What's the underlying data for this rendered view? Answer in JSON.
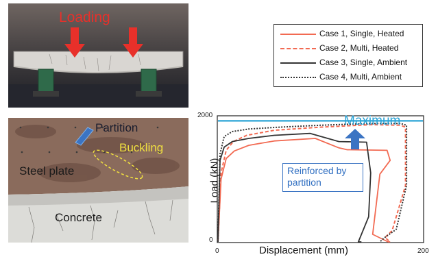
{
  "top_photo": {
    "loading_label": "Loading"
  },
  "bottom_photo": {
    "partition_label": "Partition",
    "buckling_label": "Buckling",
    "steel_label": "Steel plate",
    "concrete_label": "Concrete"
  },
  "colors": {
    "case_red": "#f26a52",
    "case_dark": "#333333",
    "maximum_line": "#2aa3d6",
    "callout": "#3b74c3",
    "loading_arrow": "#e8302a",
    "buckling_text": "#f0e040"
  },
  "chart_data": {
    "type": "line",
    "xlabel": "Displacement (mm)",
    "ylabel": "Load (kN)",
    "xlim": [
      0,
      200
    ],
    "ylim": [
      0,
      2000
    ],
    "x_ticks": [
      "0",
      "200"
    ],
    "y_ticks": [
      "0",
      "2000"
    ],
    "legend_position": "top-right",
    "series": [
      {
        "name": "Case 1, Single, Heated",
        "color": "#f26a52",
        "dash": "solid",
        "x": [
          0,
          3,
          8,
          16,
          30,
          55,
          95,
          118,
          126,
          165,
          168,
          158,
          151,
          166,
          168
        ],
        "y": [
          0,
          1000,
          1330,
          1450,
          1540,
          1610,
          1650,
          1500,
          1470,
          1460,
          1300,
          1080,
          120,
          0,
          0
        ]
      },
      {
        "name": "Case 2, Multi, Heated",
        "color": "#f26a52",
        "dash": "dashed",
        "x": [
          0,
          3,
          8,
          15,
          28,
          55,
          100,
          150,
          178,
          183,
          183,
          170,
          163,
          168
        ],
        "y": [
          0,
          1100,
          1460,
          1600,
          1700,
          1780,
          1830,
          1870,
          1860,
          1830,
          900,
          180,
          70,
          0
        ]
      },
      {
        "name": "Case 3, Single, Ambient",
        "color": "#333333",
        "dash": "solid",
        "x": [
          0,
          2,
          6,
          14,
          30,
          55,
          90,
          118,
          145,
          149,
          147,
          137,
          140
        ],
        "y": [
          0,
          1300,
          1510,
          1600,
          1650,
          1700,
          1730,
          1600,
          1590,
          1100,
          400,
          0,
          0
        ]
      },
      {
        "name": "Case 4, Multi, Ambient",
        "color": "#333333",
        "dash": "dotted",
        "x": [
          0,
          2,
          6,
          14,
          30,
          60,
          100,
          150,
          178,
          184,
          184,
          174,
          162,
          158
        ],
        "y": [
          0,
          1400,
          1680,
          1760,
          1800,
          1830,
          1860,
          1890,
          1890,
          1860,
          900,
          200,
          60,
          0
        ]
      }
    ],
    "annotations": {
      "maximum_label": "Maximum",
      "maximum_value": 1930,
      "callout_lines": [
        "Reinforced by",
        "partition"
      ]
    }
  }
}
